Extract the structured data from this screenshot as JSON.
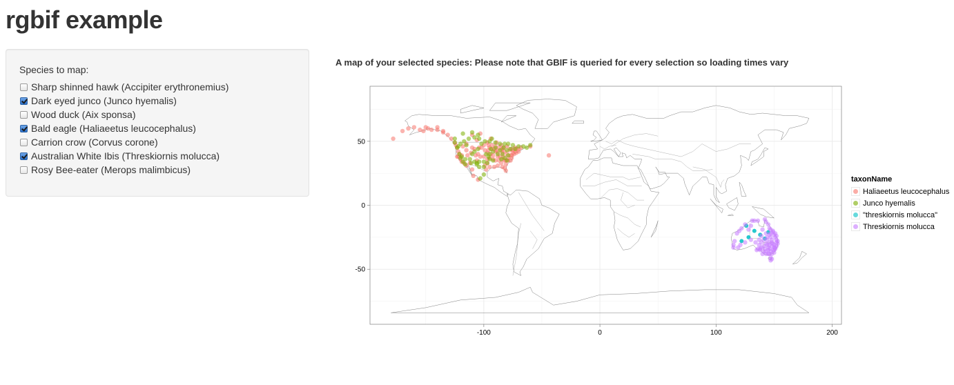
{
  "page": {
    "title": "rgbif example"
  },
  "sidebar": {
    "label": "Species to map:",
    "options": [
      {
        "label": "Sharp shinned hawk (Accipiter erythronemius)",
        "checked": false
      },
      {
        "label": "Dark eyed junco (Junco hyemalis)",
        "checked": true
      },
      {
        "label": "Wood duck (Aix sponsa)",
        "checked": false
      },
      {
        "label": "Bald eagle (Haliaeetus leucocephalus)",
        "checked": true
      },
      {
        "label": "Carrion crow (Corvus corone)",
        "checked": false
      },
      {
        "label": "Australian White Ibis (Threskiornis molucca)",
        "checked": true
      },
      {
        "label": "Rosy Bee-eater (Merops malimbicus)",
        "checked": false
      }
    ]
  },
  "main": {
    "title": "A map of your selected species: Please note that GBIF is queried for every selection so loading times vary"
  },
  "chart_data": {
    "type": "scatter",
    "xlim": [
      -198,
      208
    ],
    "ylim": [
      -93,
      93
    ],
    "x_ticks": [
      -100,
      0,
      100,
      200
    ],
    "x_tick_labels": [
      "-100",
      "0",
      "100",
      "200"
    ],
    "y_ticks": [
      -50,
      0,
      50
    ],
    "y_tick_labels": [
      "-50",
      "0",
      "50"
    ],
    "grid": true,
    "legend": {
      "title": "taxonName",
      "position": "right",
      "entries": [
        "Haliaeetus leucocephalus",
        "Junco hyemalis",
        "\"threskiornis molucca\"",
        "Threskiornis molucca"
      ]
    },
    "series": [
      {
        "name": "Haliaeetus leucocephalus",
        "color": "#f8766d",
        "points": [
          [
            -170,
            58
          ],
          [
            -165,
            60
          ],
          [
            -160,
            61
          ],
          [
            -155,
            59
          ],
          [
            -150,
            61
          ],
          [
            -148,
            60
          ],
          [
            -145,
            59
          ],
          [
            -140,
            59
          ],
          [
            -135,
            57
          ],
          [
            -131,
            55
          ],
          [
            -128,
            52
          ],
          [
            -125,
            49
          ],
          [
            -124,
            47
          ],
          [
            -123,
            45
          ],
          [
            -122,
            42
          ],
          [
            -122,
            38
          ],
          [
            -120,
            36
          ],
          [
            -117,
            33
          ],
          [
            -112,
            33
          ],
          [
            -106,
            35
          ],
          [
            -105,
            40
          ],
          [
            -104,
            45
          ],
          [
            -100,
            47
          ],
          [
            -97,
            49
          ],
          [
            -95,
            45
          ],
          [
            -93,
            44
          ],
          [
            -90,
            46
          ],
          [
            -87,
            45
          ],
          [
            -84,
            44
          ],
          [
            -82,
            42
          ],
          [
            -80,
            40
          ],
          [
            -78,
            43
          ],
          [
            -75,
            41
          ],
          [
            -73,
            42
          ],
          [
            -70,
            44
          ],
          [
            -68,
            45
          ],
          [
            -77,
            39
          ],
          [
            -76,
            37
          ],
          [
            -79,
            35
          ],
          [
            -81,
            32
          ],
          [
            -82,
            29
          ],
          [
            -81,
            27
          ],
          [
            -84,
            30
          ],
          [
            -88,
            31
          ],
          [
            -91,
            30
          ],
          [
            -95,
            30
          ],
          [
            -97,
            33
          ],
          [
            -95,
            37
          ],
          [
            -92,
            39
          ],
          [
            -88,
            41
          ],
          [
            -86,
            38
          ],
          [
            -84,
            36
          ],
          [
            -90,
            35
          ],
          [
            -90,
            42
          ],
          [
            -93,
            47
          ],
          [
            -85,
            47
          ],
          [
            -60,
            46
          ],
          [
            -44,
            39
          ],
          [
            -97,
            41
          ],
          [
            -100,
            38
          ],
          [
            -110,
            45
          ],
          [
            -115,
            48
          ],
          [
            -118,
            46
          ],
          [
            -106,
            51
          ],
          [
            -110,
            55
          ],
          [
            -103,
            56
          ],
          [
            -94,
            52
          ],
          [
            -89,
            49
          ],
          [
            -80,
            46
          ],
          [
            -72,
            41
          ],
          [
            -74,
            40
          ],
          [
            -76,
            39
          ],
          [
            -77,
            35
          ],
          [
            -85,
            33
          ],
          [
            -87,
            35
          ],
          [
            -82,
            35
          ],
          [
            -92,
            36
          ],
          [
            -97,
            36
          ],
          [
            -99,
            31
          ],
          [
            -98,
            28
          ],
          [
            -110,
            28
          ],
          [
            -109,
            23
          ],
          [
            -105,
            20
          ],
          [
            -115,
            31
          ],
          [
            -135,
            58
          ],
          [
            -152,
            58
          ],
          [
            -140,
            61
          ],
          [
            -178,
            52
          ],
          [
            -96,
            43
          ],
          [
            -91,
            44
          ],
          [
            -89,
            43
          ],
          [
            -83,
            38
          ],
          [
            -79,
            37
          ],
          [
            -75,
            43
          ],
          [
            -73,
            45
          ],
          [
            -70,
            42
          ],
          [
            -81,
            35
          ],
          [
            -84,
            41
          ],
          [
            -96,
            47
          ],
          [
            -102,
            45
          ],
          [
            -108,
            44
          ],
          [
            -115,
            43
          ],
          [
            -119,
            39
          ],
          [
            -121,
            40
          ],
          [
            -123,
            38
          ],
          [
            -119,
            34
          ],
          [
            -114,
            39
          ],
          [
            -111,
            41
          ],
          [
            -107,
            39
          ],
          [
            -103,
            38
          ],
          [
            -99,
            43
          ],
          [
            -94,
            40
          ],
          [
            -88,
            38
          ],
          [
            -85,
            43
          ],
          [
            -83,
            45
          ],
          [
            -76,
            44
          ],
          [
            -72,
            44
          ]
        ]
      },
      {
        "name": "Junco hyemalis",
        "color": "#7cae00",
        "points": [
          [
            -125,
            49
          ],
          [
            -123,
            45
          ],
          [
            -121,
            40
          ],
          [
            -120,
            37
          ],
          [
            -118,
            34
          ],
          [
            -116,
            32
          ],
          [
            -111,
            33
          ],
          [
            -108,
            34
          ],
          [
            -106,
            33
          ],
          [
            -104,
            34
          ],
          [
            -100,
            34
          ],
          [
            -97,
            33
          ],
          [
            -95,
            36
          ],
          [
            -92,
            35
          ],
          [
            -96,
            38
          ],
          [
            -98,
            40
          ],
          [
            -115,
            47
          ],
          [
            -117,
            50
          ],
          [
            -113,
            52
          ],
          [
            -108,
            53
          ],
          [
            -104,
            52
          ],
          [
            -90,
            45
          ],
          [
            -86,
            43
          ],
          [
            -83,
            45
          ],
          [
            -80,
            43
          ],
          [
            -77,
            44
          ],
          [
            -73,
            44
          ],
          [
            -70,
            46
          ],
          [
            -66,
            46
          ],
          [
            -63,
            45
          ],
          [
            -60,
            47
          ],
          [
            -75,
            47
          ],
          [
            -79,
            48
          ],
          [
            -82,
            48
          ],
          [
            -86,
            48
          ],
          [
            -90,
            49
          ],
          [
            -95,
            50
          ],
          [
            -105,
            55
          ],
          [
            -110,
            57
          ],
          [
            -118,
            56
          ],
          [
            -104,
            30
          ],
          [
            -100,
            30
          ],
          [
            -106,
            32
          ],
          [
            -112,
            36
          ],
          [
            -116,
            36
          ],
          [
            -119,
            38
          ],
          [
            -122,
            46
          ],
          [
            -120,
            48
          ],
          [
            -125,
            52
          ],
          [
            -85,
            36
          ],
          [
            -82,
            37
          ],
          [
            -79,
            39
          ],
          [
            -84,
            40
          ],
          [
            -88,
            40
          ],
          [
            -92,
            42
          ],
          [
            -94,
            44
          ],
          [
            -80,
            35
          ],
          [
            -100,
            24
          ],
          [
            -103,
            21
          ],
          [
            -95,
            40
          ],
          [
            -110,
            40
          ],
          [
            -108,
            42
          ],
          [
            -105,
            44
          ],
          [
            -102,
            48
          ],
          [
            -99,
            50
          ],
          [
            -93,
            52
          ]
        ]
      },
      {
        "name": "\"threskiornis molucca\"",
        "color": "#00bfc4",
        "points": [
          [
            138,
            -23
          ],
          [
            122,
            -28
          ],
          [
            128,
            -25
          ],
          [
            142,
            -26
          ],
          [
            133,
            -20
          ],
          [
            126,
            -16
          ],
          [
            145,
            -21
          ]
        ]
      },
      {
        "name": "Threskiornis molucca",
        "color": "#c77cff",
        "points": [
          [
            115,
            -31
          ],
          [
            115,
            -33
          ],
          [
            116,
            -28
          ],
          [
            118,
            -22
          ],
          [
            120,
            -20
          ],
          [
            125,
            -15
          ],
          [
            131,
            -12
          ],
          [
            133,
            -12
          ],
          [
            136,
            -12
          ],
          [
            142,
            -11
          ],
          [
            143,
            -13
          ],
          [
            145,
            -15
          ],
          [
            146,
            -18
          ],
          [
            147,
            -19
          ],
          [
            149,
            -21
          ],
          [
            150,
            -23
          ],
          [
            151,
            -25
          ],
          [
            152,
            -27
          ],
          [
            153,
            -28
          ],
          [
            153,
            -30
          ],
          [
            152,
            -32
          ],
          [
            151,
            -33
          ],
          [
            151,
            -34
          ],
          [
            150,
            -35
          ],
          [
            150,
            -37
          ],
          [
            148,
            -38
          ],
          [
            146,
            -38
          ],
          [
            145,
            -38
          ],
          [
            143,
            -38
          ],
          [
            140,
            -38
          ],
          [
            138,
            -35
          ],
          [
            138,
            -34
          ],
          [
            136,
            -34
          ],
          [
            135,
            -35
          ],
          [
            147,
            -41
          ],
          [
            147,
            -43
          ],
          [
            148,
            -42
          ],
          [
            147,
            -36
          ],
          [
            146,
            -34
          ],
          [
            145,
            -33
          ],
          [
            144,
            -31
          ],
          [
            146,
            -29
          ],
          [
            148,
            -27
          ],
          [
            149,
            -30
          ],
          [
            150,
            -33
          ],
          [
            148,
            -32
          ],
          [
            147,
            -25
          ],
          [
            143,
            -22
          ],
          [
            140,
            -19
          ],
          [
            139,
            -24
          ],
          [
            141,
            -27
          ],
          [
            143,
            -30
          ],
          [
            142,
            -34
          ],
          [
            141,
            -36
          ],
          [
            139,
            -33
          ],
          [
            137,
            -31
          ],
          [
            152,
            -24
          ],
          [
            151,
            -22
          ],
          [
            149,
            -20
          ],
          [
            146,
            -23
          ],
          [
            144,
            -25
          ],
          [
            145,
            -35
          ],
          [
            149,
            -35
          ],
          [
            150,
            -31
          ],
          [
            148,
            -29
          ],
          [
            152,
            -29
          ],
          [
            146,
            -31
          ],
          [
            143,
            -36
          ],
          [
            141,
            -32
          ],
          [
            144,
            -27
          ],
          [
            147,
            -22
          ],
          [
            119,
            -33
          ],
          [
            121,
            -31
          ],
          [
            125,
            -29
          ],
          [
            130,
            -27
          ],
          [
            134,
            -29
          ],
          [
            137,
            -27
          ],
          [
            139,
            -29
          ],
          [
            128,
            -19
          ],
          [
            130,
            -16
          ],
          [
            122,
            -18
          ]
        ]
      }
    ]
  }
}
